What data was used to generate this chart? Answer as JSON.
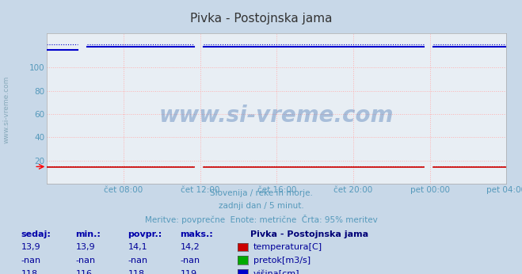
{
  "title": "Pivka - Postojnska jama",
  "bg_color": "#c8d8e8",
  "plot_bg_color": "#e8eef4",
  "grid_color": "#ffb0b0",
  "grid_style": ":",
  "subtitle_lines": [
    "Slovenija / reke in morje.",
    "zadnji dan / 5 minut.",
    "Meritve: povprečne  Enote: metrične  Črta: 95% meritev"
  ],
  "subtitle_color": "#5599bb",
  "tick_color": "#5599bb",
  "watermark": "www.si-vreme.com",
  "xticklabels": [
    "čet 08:00",
    "čet 12:00",
    "čet 16:00",
    "čet 20:00",
    "pet 00:00",
    "pet 04:00"
  ],
  "yticks": [
    20,
    40,
    60,
    80,
    100
  ],
  "ylim": [
    0,
    130
  ],
  "xlim": [
    0,
    288
  ],
  "xtick_positions": [
    48,
    96,
    144,
    192,
    240,
    288
  ],
  "n_points": 289,
  "temp_value": 14.1,
  "visina_value": 118.0,
  "visina_dotted": 120.0,
  "temp_dotted": 14.6,
  "temp_color": "#cc0000",
  "visina_color": "#0000cc",
  "pretok_color": "#00aa00",
  "left_label": "www.si-vreme.com",
  "left_label_color": "#88aabb",
  "table_header_color": "#0000aa",
  "table_value_color": "#000099",
  "legend_title": "Pivka - Postojnska jama",
  "legend_title_color": "#000077",
  "table_rows": [
    {
      "sedaj": "13,9",
      "min": "13,9",
      "povpr": "14,1",
      "maks": "14,2",
      "label": "temperatura[C]",
      "color": "#cc0000"
    },
    {
      "sedaj": "-nan",
      "min": "-nan",
      "povpr": "-nan",
      "maks": "-nan",
      "label": "pretok[m3/s]",
      "color": "#00aa00"
    },
    {
      "sedaj": "118",
      "min": "116",
      "povpr": "118",
      "maks": "119",
      "label": "višina[cm]",
      "color": "#0000cc"
    }
  ],
  "visina_gap1_start": 93,
  "visina_gap1_end": 97,
  "visina_gap2_start": 237,
  "visina_gap2_end": 241,
  "temp_gap1_start": 93,
  "temp_gap1_end": 97,
  "temp_gap2_start": 237,
  "temp_gap2_end": 241
}
